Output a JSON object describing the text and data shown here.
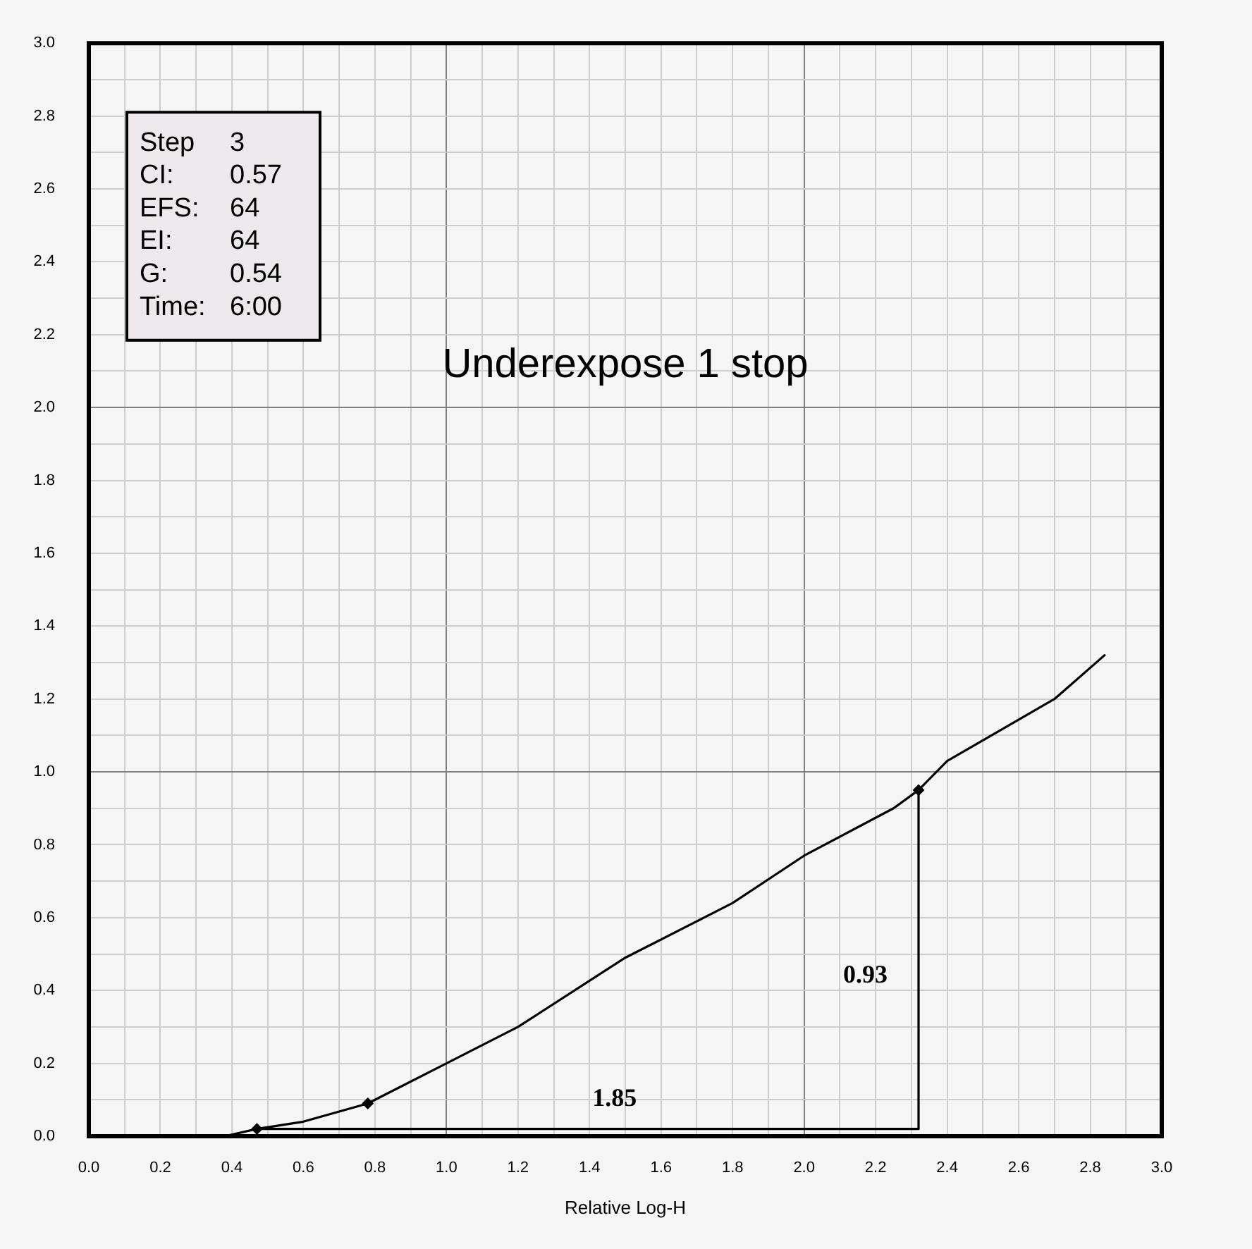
{
  "chart_data": {
    "type": "line",
    "title": "Underexpose 1 stop",
    "xlabel": "Relative Log-H",
    "annotations": [
      "Step 3",
      "CI: 0.57",
      "EFS: 64",
      "EI: 64",
      "G: 0.54",
      "Time: 6:00",
      {
        "text": "1.85",
        "x": 1.47,
        "y": 0.02
      },
      {
        "text": "0.93",
        "x": 2.32,
        "y": 0.44
      }
    ],
    "series": [
      {
        "color": "#000000",
        "x": [
          0.27,
          0.38,
          0.47,
          0.6,
          0.78,
          1.0,
          1.2,
          1.5,
          1.8,
          2.0,
          2.25,
          2.32,
          2.4,
          2.7,
          2.84
        ],
        "values": [
          0,
          0,
          0.02,
          0.04,
          0.09,
          0.2,
          0.3,
          0.49,
          0.64,
          0.77,
          0.9,
          0.95,
          1.03,
          1.2,
          1.32
        ]
      },
      {
        "color": "#000000",
        "x": [
          0.47,
          2.32,
          2.32
        ],
        "values": [
          0.02,
          0.02,
          0.95
        ]
      },
      {
        "type": "scatter",
        "color": "#000000",
        "marker": "diamond",
        "x": [
          0.47,
          0.78,
          2.32
        ],
        "values": [
          0.02,
          0.09,
          0.95
        ]
      }
    ],
    "xlim": [
      0,
      3
    ],
    "ylim": [
      0,
      3
    ],
    "xticks": [
      {
        "value": 0,
        "label": "0.0"
      },
      {
        "value": 0.1,
        "label": null
      },
      0.2,
      {
        "value": 0.3,
        "label": null
      },
      0.4,
      {
        "value": 0.5,
        "label": null
      },
      0.6,
      {
        "value": 0.7,
        "label": null
      },
      0.8,
      {
        "value": 0.9,
        "label": null
      },
      {
        "value": 1,
        "label": "1.0"
      },
      {
        "value": 1.1,
        "label": null
      },
      1.2,
      {
        "value": 1.3,
        "label": null
      },
      1.4,
      {
        "value": 1.5,
        "label": null
      },
      1.6,
      {
        "value": 1.7,
        "label": null
      },
      1.8,
      {
        "value": 1.9,
        "label": null
      },
      {
        "value": 2,
        "label": "2.0"
      },
      {
        "value": 2.1,
        "label": null
      },
      2.2,
      {
        "value": 2.3,
        "label": null
      },
      2.4,
      {
        "value": 2.5,
        "label": null
      },
      2.6,
      {
        "value": 2.7,
        "label": null
      },
      2.8,
      {
        "value": 2.9,
        "label": null
      },
      {
        "value": 3,
        "label": "3.0"
      }
    ],
    "yticks": [
      {
        "value": 0,
        "label": "0.0"
      },
      {
        "value": 0.1,
        "label": null
      },
      0.2,
      {
        "value": 0.3,
        "label": null
      },
      0.4,
      {
        "value": 0.5,
        "label": null
      },
      0.6,
      {
        "value": 0.7,
        "label": null
      },
      0.8,
      {
        "value": 0.9,
        "label": null
      },
      {
        "value": 1,
        "label": "1.0"
      },
      {
        "value": 1.1,
        "label": null
      },
      1.2,
      {
        "value": 1.3,
        "label": null
      },
      1.4,
      {
        "value": 1.5,
        "label": null
      },
      1.6,
      {
        "value": 1.7,
        "label": null
      },
      1.8,
      {
        "value": 1.9,
        "label": null
      },
      {
        "value": 2,
        "label": "2.0"
      },
      {
        "value": 2.1,
        "label": null
      },
      2.2,
      {
        "value": 2.3,
        "label": null
      },
      2.4,
      {
        "value": 2.5,
        "label": null
      },
      2.6,
      {
        "value": 2.7,
        "label": null
      },
      2.8,
      {
        "value": 2.9,
        "label": null
      },
      {
        "value": 3,
        "label": "3.0"
      }
    ],
    "grid": true
  }
}
